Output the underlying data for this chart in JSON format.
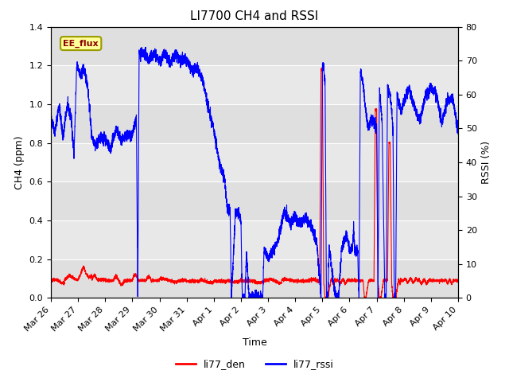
{
  "title": "LI7700 CH4 and RSSI",
  "ylabel_left": "CH4 (ppm)",
  "ylabel_right": "RSSI (%)",
  "xlabel": "Time",
  "ylim_left": [
    0.0,
    1.4
  ],
  "ylim_right": [
    0,
    80
  ],
  "yticks_left": [
    0.0,
    0.2,
    0.4,
    0.6,
    0.8,
    1.0,
    1.2,
    1.4
  ],
  "yticks_right": [
    0,
    10,
    20,
    30,
    40,
    50,
    60,
    70,
    80
  ],
  "annotation_text": "EE_flux",
  "annotation_box_color": "#FFFF99",
  "annotation_box_edge": "#999900",
  "grid_color": "#CCCCCC",
  "bg_color": "#E8E8E8",
  "line_color_red": "#FF0000",
  "line_color_blue": "#0000FF",
  "legend_label_red": "li77_den",
  "legend_label_blue": "li77_rssi",
  "title_fontsize": 11,
  "label_fontsize": 9,
  "tick_fontsize": 8,
  "xtick_labels": [
    "Mar 26",
    "Mar 27",
    "Mar 28",
    "Mar 29",
    "Mar 30",
    "Mar 31",
    "Apr 1",
    "Apr 2",
    "Apr 3",
    "Apr 4",
    "Apr 5",
    "Apr 6",
    "Apr 7",
    "Apr 8",
    "Apr 9",
    "Apr 10"
  ]
}
